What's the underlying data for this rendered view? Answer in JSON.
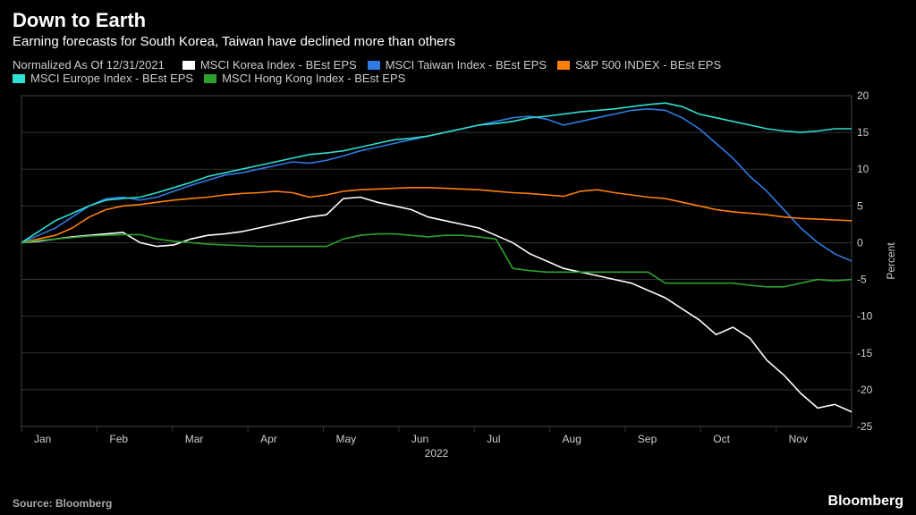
{
  "title": "Down to Earth",
  "subtitle": "Earning forecasts for South Korea, Taiwan have declined more than others",
  "normalized_label": "Normalized As Of 12/31/2021",
  "source": "Source: Bloomberg",
  "brand": "Bloomberg",
  "chart": {
    "type": "line",
    "background_color": "#000000",
    "grid_color": "#333333",
    "ylabel": "Percent",
    "ylim": [
      -25,
      20
    ],
    "ytick_step": 5,
    "yticks": [
      -25,
      -20,
      -15,
      -10,
      -5,
      0,
      5,
      10,
      15,
      20
    ],
    "x_months": [
      "Jan",
      "Feb",
      "Mar",
      "Apr",
      "May",
      "Jun",
      "Jul",
      "Aug",
      "Sep",
      "Oct",
      "Nov"
    ],
    "x_year": "2022",
    "legend_row1": [
      {
        "label": "MSCI Korea Index - BEst EPS",
        "color": "#ffffff"
      },
      {
        "label": "MSCI Taiwan Index - BEst EPS",
        "color": "#2f7ae5"
      },
      {
        "label": "S&P 500 INDEX - BEst EPS",
        "color": "#ff7f0e"
      }
    ],
    "legend_row2": [
      {
        "label": "MSCI Europe Index - BEst EPS",
        "color": "#2ee0d0"
      },
      {
        "label": "MSCI Hong Kong Index - BEst EPS",
        "color": "#2ca02c"
      }
    ],
    "series": [
      {
        "name": "MSCI Korea Index - BEst EPS",
        "color": "#ffffff",
        "data": [
          0,
          0.2,
          0.5,
          0.8,
          1.0,
          1.2,
          1.4,
          0.0,
          -0.5,
          -0.3,
          0.5,
          1.0,
          1.2,
          1.5,
          2.0,
          2.5,
          3.0,
          3.5,
          3.8,
          6.0,
          6.2,
          5.5,
          5.0,
          4.5,
          3.5,
          3.0,
          2.5,
          2.0,
          1.0,
          0.0,
          -1.5,
          -2.5,
          -3.5,
          -4.0,
          -4.5,
          -5.0,
          -5.5,
          -6.5,
          -7.5,
          -9.0,
          -10.5,
          -12.5,
          -11.5,
          -13.0,
          -16.0,
          -18.0,
          -20.5,
          -22.5,
          -22.0,
          -23.0
        ]
      },
      {
        "name": "MSCI Taiwan Index - BEst EPS",
        "color": "#2f7ae5",
        "data": [
          0,
          1.0,
          2.0,
          3.5,
          5.0,
          6.0,
          6.2,
          5.8,
          6.2,
          7.0,
          7.8,
          8.5,
          9.2,
          9.5,
          10.0,
          10.5,
          11.0,
          10.8,
          11.2,
          11.8,
          12.5,
          13.0,
          13.5,
          14.0,
          14.5,
          15.0,
          15.5,
          16.0,
          16.5,
          17.0,
          17.2,
          16.8,
          16.0,
          16.5,
          17.0,
          17.5,
          18.0,
          18.2,
          18.0,
          17.0,
          15.5,
          13.5,
          11.5,
          9.0,
          7.0,
          4.5,
          2.0,
          0.0,
          -1.5,
          -2.5
        ]
      },
      {
        "name": "S&P 500 INDEX - BEst EPS",
        "color": "#ff7f0e",
        "data": [
          0,
          0.5,
          1.0,
          2.0,
          3.5,
          4.5,
          5.0,
          5.2,
          5.5,
          5.8,
          6.0,
          6.2,
          6.5,
          6.7,
          6.8,
          7.0,
          6.8,
          6.2,
          6.5,
          7.0,
          7.2,
          7.3,
          7.4,
          7.5,
          7.5,
          7.4,
          7.3,
          7.2,
          7.0,
          6.8,
          6.7,
          6.5,
          6.3,
          7.0,
          7.2,
          6.8,
          6.5,
          6.2,
          6.0,
          5.5,
          5.0,
          4.5,
          4.2,
          4.0,
          3.8,
          3.5,
          3.3,
          3.2,
          3.1,
          3.0
        ]
      },
      {
        "name": "MSCI Europe Index - BEst EPS",
        "color": "#2ee0d0",
        "data": [
          0,
          1.5,
          3.0,
          4.0,
          5.0,
          5.8,
          6.0,
          6.2,
          6.8,
          7.5,
          8.2,
          9.0,
          9.5,
          10.0,
          10.5,
          11.0,
          11.5,
          12.0,
          12.2,
          12.5,
          13.0,
          13.5,
          14.0,
          14.2,
          14.5,
          15.0,
          15.5,
          16.0,
          16.2,
          16.5,
          17.0,
          17.2,
          17.5,
          17.8,
          18.0,
          18.2,
          18.5,
          18.8,
          19.0,
          18.5,
          17.5,
          17.0,
          16.5,
          16.0,
          15.5,
          15.2,
          15.0,
          15.2,
          15.5,
          15.5
        ]
      },
      {
        "name": "MSCI Hong Kong Index - BEst EPS",
        "color": "#2ca02c",
        "data": [
          0,
          0.3,
          0.5,
          0.7,
          0.9,
          1.0,
          1.1,
          1.1,
          0.5,
          0.2,
          0.0,
          -0.2,
          -0.3,
          -0.4,
          -0.5,
          -0.5,
          -0.5,
          -0.5,
          -0.5,
          0.5,
          1.0,
          1.2,
          1.2,
          1.0,
          0.8,
          1.0,
          1.0,
          0.8,
          0.5,
          -3.5,
          -3.8,
          -4.0,
          -4.0,
          -4.0,
          -4.0,
          -4.0,
          -4.0,
          -4.0,
          -5.5,
          -5.5,
          -5.5,
          -5.5,
          -5.5,
          -5.8,
          -6.0,
          -6.0,
          -5.5,
          -5.0,
          -5.2,
          -5.0
        ]
      }
    ]
  }
}
